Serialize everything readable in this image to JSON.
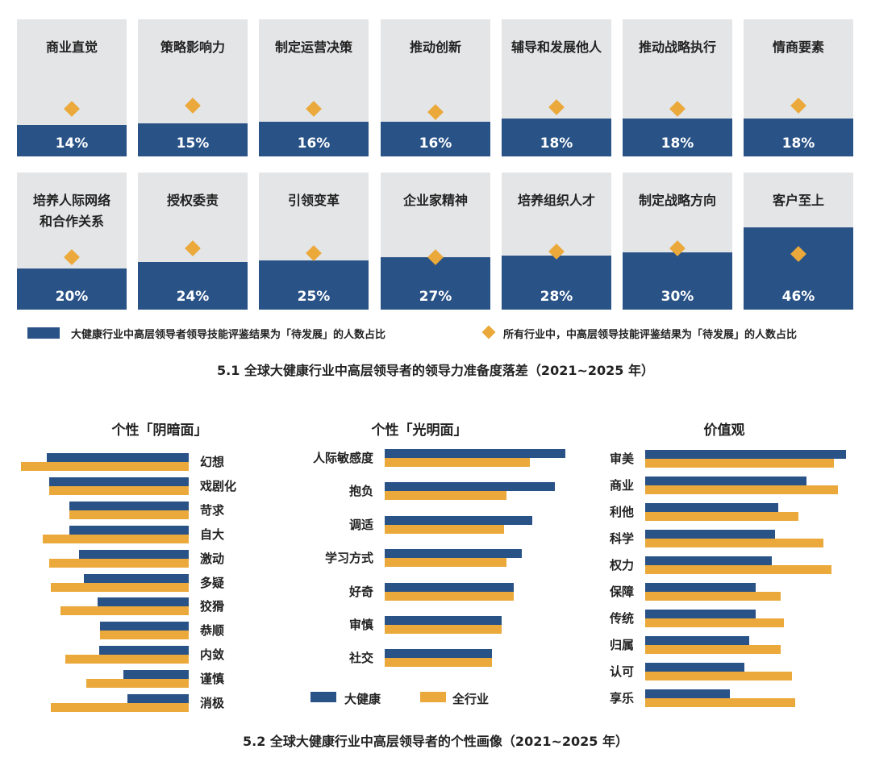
{
  "colors": {
    "health": "#295287",
    "all": "#eaa93a",
    "tile_bg": "#e4e5e7"
  },
  "tiles": [
    {
      "name": "商业直觉",
      "pct": "14%",
      "value": 14,
      "all_value": 24
    },
    {
      "name": "策略影响力",
      "pct": "15%",
      "value": 15,
      "all_value": 26
    },
    {
      "name": "制定运营决策",
      "pct": "16%",
      "value": 16,
      "all_value": 24
    },
    {
      "name": "推动创新",
      "pct": "16%",
      "value": 16,
      "all_value": 22
    },
    {
      "name": "辅导和发展他人",
      "pct": "18%",
      "value": 18,
      "all_value": 25
    },
    {
      "name": "推动战略执行",
      "pct": "18%",
      "value": 18,
      "all_value": 24
    },
    {
      "name": "情商要素",
      "pct": "18%",
      "value": 18,
      "all_value": 26
    },
    {
      "name": "培养人际网络\n和合作关系",
      "pct": "20%",
      "value": 20,
      "all_value": 27
    },
    {
      "name": "授权委责",
      "pct": "24%",
      "value": 24,
      "all_value": 33
    },
    {
      "name": "引领变革",
      "pct": "25%",
      "value": 25,
      "all_value": 30
    },
    {
      "name": "企业家精神",
      "pct": "27%",
      "value": 27,
      "all_value": 27
    },
    {
      "name": "培养组织人才",
      "pct": "28%",
      "value": 28,
      "all_value": 31
    },
    {
      "name": "制定战略方向",
      "pct": "30%",
      "value": 30,
      "all_value": 33
    },
    {
      "name": "客户至上",
      "pct": "46%",
      "value": 46,
      "all_value": 29
    }
  ],
  "legend1": {
    "health": "大健康行业中高层领导者领导技能评鉴结果为「待发展」的人数占比",
    "all": "所有行业中，中高层领导技能评鉴结果为「待发展」的人数占比"
  },
  "caption1": "5.1 全球大健康行业中高层领导者的领导力准备度落差（2021~2025 年）",
  "caption2": "5.2 全球大健康行业中高层领导者的个性画像（2021~2025 年）",
  "chart_data": [
    {
      "type": "bar",
      "title": "个性「阴暗面」",
      "categories": [
        "幻想",
        "戏剧化",
        "苛求",
        "自大",
        "激动",
        "多疑",
        "狡猾",
        "恭顺",
        "内敛",
        "谨慎",
        "消极"
      ],
      "series": [
        {
          "name": "大健康",
          "values": [
            176,
            173,
            148,
            148,
            136,
            130,
            113,
            110,
            111,
            81,
            76
          ]
        },
        {
          "name": "全行业",
          "values": [
            208,
            173,
            148,
            181,
            173,
            171,
            159,
            110,
            153,
            127,
            171
          ]
        }
      ]
    },
    {
      "type": "bar",
      "title": "个性「光明面」",
      "categories": [
        "人际敏感度",
        "抱负",
        "调适",
        "学习方式",
        "好奇",
        "审慎",
        "社交"
      ],
      "series": [
        {
          "name": "大健康",
          "values": [
            224,
            211,
            183,
            170,
            160,
            145,
            133
          ]
        },
        {
          "name": "全行业",
          "values": [
            180,
            151,
            148,
            151,
            160,
            145,
            133
          ]
        }
      ]
    },
    {
      "type": "bar",
      "title": "价值观",
      "categories": [
        "审美",
        "商业",
        "利他",
        "科学",
        "权力",
        "保障",
        "传统",
        "归属",
        "认可",
        "享乐"
      ],
      "series": [
        {
          "name": "大健康",
          "values": [
            249,
            200,
            165,
            161,
            157,
            137,
            137,
            129,
            123,
            105
          ]
        },
        {
          "name": "全行业",
          "values": [
            234,
            239,
            190,
            221,
            231,
            168,
            172,
            168,
            182,
            186
          ]
        }
      ]
    }
  ],
  "legend2": {
    "health": "大健康",
    "all": "全行业"
  }
}
